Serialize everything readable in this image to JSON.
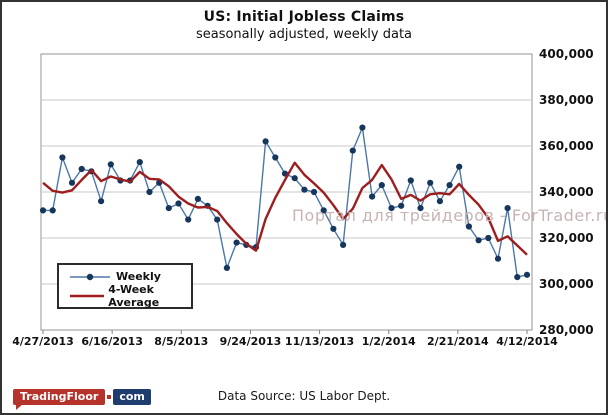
{
  "header": {
    "title": "US: Initial Jobless Claims",
    "subtitle": "seasonally adjusted, weekly data"
  },
  "watermark": {
    "text": "Портал для трейдеров - ForTrader.ru",
    "color": "#c9b4b4"
  },
  "footer": {
    "source": "Data Source: US Labor Dept.",
    "logo": {
      "primary": "TradingFloor",
      "secondary": "com",
      "red": "#b5332b",
      "navy": "#1e3c6e"
    }
  },
  "chart_data": {
    "type": "line",
    "title": "US: Initial Jobless Claims",
    "subtitle": "seasonally adjusted, weekly data",
    "xlabel": "",
    "ylabel": "",
    "grid": "horizontal",
    "legend_position": "inside-bottom-left",
    "ylim": [
      280000,
      400000
    ],
    "y_ticks": [
      {
        "value": 280000,
        "label": "280,000"
      },
      {
        "value": 300000,
        "label": "300,000"
      },
      {
        "value": 320000,
        "label": "320,000"
      },
      {
        "value": 340000,
        "label": "340,000"
      },
      {
        "value": 360000,
        "label": "360,000"
      },
      {
        "value": 380000,
        "label": "380,000"
      },
      {
        "value": 400000,
        "label": "400,000"
      }
    ],
    "x_tick_labels": [
      "4/27/2013",
      "6/16/2013",
      "8/5/2013",
      "9/24/2013",
      "11/13/2013",
      "1/2/2014",
      "2/21/2014",
      "4/12/2014"
    ],
    "x_dates": [
      "4/27/2013",
      "5/4/2013",
      "5/11/2013",
      "5/18/2013",
      "5/25/2013",
      "6/1/2013",
      "6/8/2013",
      "6/15/2013",
      "6/22/2013",
      "6/29/2013",
      "7/6/2013",
      "7/13/2013",
      "7/20/2013",
      "7/27/2013",
      "8/3/2013",
      "8/10/2013",
      "8/17/2013",
      "8/24/2013",
      "8/31/2013",
      "9/7/2013",
      "9/14/2013",
      "9/21/2013",
      "9/28/2013",
      "10/5/2013",
      "10/12/2013",
      "10/19/2013",
      "10/26/2013",
      "11/2/2013",
      "11/9/2013",
      "11/16/2013",
      "11/23/2013",
      "11/30/2013",
      "12/7/2013",
      "12/14/2013",
      "12/21/2013",
      "12/28/2013",
      "1/4/2014",
      "1/11/2014",
      "1/18/2014",
      "1/25/2014",
      "2/1/2014",
      "2/8/2014",
      "2/15/2014",
      "2/22/2014",
      "3/1/2014",
      "3/8/2014",
      "3/15/2014",
      "3/22/2014",
      "3/29/2014",
      "4/5/2014",
      "4/12/2014"
    ],
    "series": [
      {
        "name": "Weekly",
        "color": "#4b77a9",
        "marker_color": "#16365c",
        "markers": true,
        "values": [
          332000,
          332000,
          355000,
          344000,
          350000,
          349000,
          336000,
          352000,
          345000,
          345000,
          353000,
          340000,
          344000,
          333000,
          335000,
          328000,
          337000,
          334000,
          328000,
          307000,
          318000,
          317000,
          316000,
          362000,
          355000,
          348000,
          346000,
          341000,
          340000,
          332000,
          324000,
          317000,
          358000,
          368000,
          338000,
          343000,
          333000,
          334000,
          345000,
          333000,
          344000,
          336000,
          343000,
          351000,
          325000,
          319000,
          320000,
          311000,
          333000,
          303000,
          304000
        ]
      },
      {
        "name": "4-Week Average",
        "color": "#9c1e1e",
        "marker_color": "#9c1e1e",
        "markers": false,
        "values": [
          344000,
          340500,
          339750,
          340750,
          345250,
          349500,
          344750,
          346750,
          345500,
          344500,
          348750,
          345750,
          345500,
          342500,
          338000,
          335000,
          333250,
          333500,
          331750,
          326500,
          321750,
          317500,
          314500,
          328250,
          337500,
          345250,
          352750,
          347500,
          343750,
          339750,
          334250,
          328250,
          332750,
          341750,
          345250,
          351750,
          345500,
          337000,
          338750,
          336250,
          339000,
          339500,
          339000,
          343500,
          338750,
          334500,
          328750,
          318750,
          320750,
          316750,
          312750
        ]
      }
    ],
    "colors": {
      "grid": "#c9c9c9",
      "plot_border": "#949494",
      "axis": "#7f7f7f"
    }
  }
}
